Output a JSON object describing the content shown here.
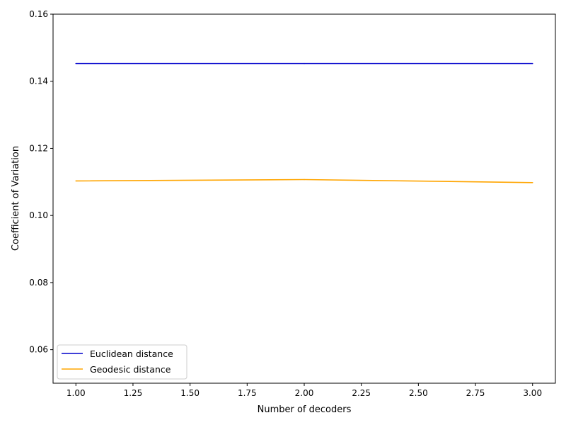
{
  "chart_data": {
    "type": "line",
    "x": [
      1.0,
      2.0,
      3.0
    ],
    "series": [
      {
        "name": "Euclidean distance",
        "color": "#0000cc",
        "values": [
          0.1453,
          0.1453,
          0.1453
        ]
      },
      {
        "name": "Geodesic distance",
        "color": "#ffa500",
        "values": [
          0.1103,
          0.1107,
          0.1098
        ]
      }
    ],
    "xlabel": "Number of decoders",
    "ylabel": "Coefficient of Variation",
    "xlim": [
      0.9,
      3.1
    ],
    "ylim": [
      0.05,
      0.16
    ],
    "xticks": [
      "1.00",
      "1.25",
      "1.50",
      "1.75",
      "2.00",
      "2.25",
      "2.50",
      "2.75",
      "3.00"
    ],
    "yticks": [
      "0.06",
      "0.08",
      "0.10",
      "0.12",
      "0.14",
      "0.16"
    ],
    "grid": false,
    "legend_position": "lower-left"
  }
}
